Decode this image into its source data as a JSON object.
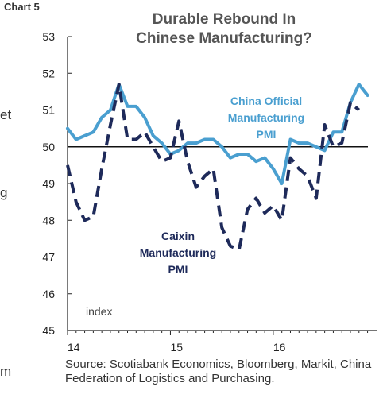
{
  "chart_label": "Chart 5",
  "source_note": "Source: Scotiabank Economics, Bloomberg, Markit, China Federation of Logistics and Purchasing.",
  "edge_text_left": [
    "et",
    "g",
    "m"
  ],
  "chart_data": {
    "type": "line",
    "title_lines": [
      "Durable Rebound In",
      "Chinese Manufacturing?"
    ],
    "ylabel": "index",
    "ylim": [
      45,
      53
    ],
    "yticks": [
      45,
      46,
      47,
      48,
      49,
      50,
      51,
      52,
      53
    ],
    "xlim": [
      2014.0,
      2016.92
    ],
    "xticks": [
      {
        "value": 2014,
        "label": "14"
      },
      {
        "value": 2015,
        "label": "15"
      },
      {
        "value": 2016,
        "label": "16"
      }
    ],
    "reference_line": 50,
    "series": [
      {
        "name_lines": [
          "China Official",
          "Manufacturing",
          "PMI"
        ],
        "color": "#4a9fd0",
        "dash": "solid",
        "x": [
          2014.0,
          2014.083,
          2014.167,
          2014.25,
          2014.333,
          2014.417,
          2014.5,
          2014.583,
          2014.667,
          2014.75,
          2014.833,
          2014.917,
          2015.0,
          2015.083,
          2015.167,
          2015.25,
          2015.333,
          2015.417,
          2015.5,
          2015.583,
          2015.667,
          2015.75,
          2015.833,
          2015.917,
          2016.0,
          2016.083,
          2016.167,
          2016.25,
          2016.333,
          2016.417,
          2016.5,
          2016.583,
          2016.667,
          2016.75,
          2016.833,
          2016.917
        ],
        "values": [
          50.5,
          50.2,
          50.3,
          50.4,
          50.8,
          51.0,
          51.7,
          51.1,
          51.1,
          50.8,
          50.3,
          50.1,
          49.8,
          49.9,
          50.1,
          50.1,
          50.2,
          50.2,
          50.0,
          49.7,
          49.8,
          49.8,
          49.6,
          49.7,
          49.4,
          49.0,
          50.2,
          50.1,
          50.1,
          50.0,
          49.9,
          50.4,
          50.4,
          51.2,
          51.7,
          51.4
        ],
        "label_pos": "upper-right"
      },
      {
        "name_lines": [
          "Caixin",
          "Manufacturing",
          "PMI"
        ],
        "color": "#1e2a5a",
        "dash": "dashed",
        "x": [
          2014.0,
          2014.083,
          2014.167,
          2014.25,
          2014.333,
          2014.417,
          2014.5,
          2014.583,
          2014.667,
          2014.75,
          2014.833,
          2014.917,
          2015.0,
          2015.083,
          2015.167,
          2015.25,
          2015.333,
          2015.417,
          2015.5,
          2015.583,
          2015.667,
          2015.75,
          2015.833,
          2015.917,
          2016.0,
          2016.083,
          2016.167,
          2016.25,
          2016.333,
          2016.417,
          2016.5,
          2016.583,
          2016.667,
          2016.75,
          2016.833
        ],
        "values": [
          49.5,
          48.5,
          48.0,
          48.1,
          49.4,
          50.6,
          51.7,
          50.2,
          50.2,
          50.4,
          50.0,
          49.6,
          49.7,
          50.7,
          49.6,
          48.9,
          49.2,
          49.4,
          47.8,
          47.3,
          47.2,
          48.3,
          48.6,
          48.2,
          48.4,
          48.0,
          49.7,
          49.4,
          49.2,
          48.6,
          50.6,
          50.0,
          50.1,
          51.2,
          51.0
        ],
        "label_pos": "lower-center"
      }
    ]
  }
}
